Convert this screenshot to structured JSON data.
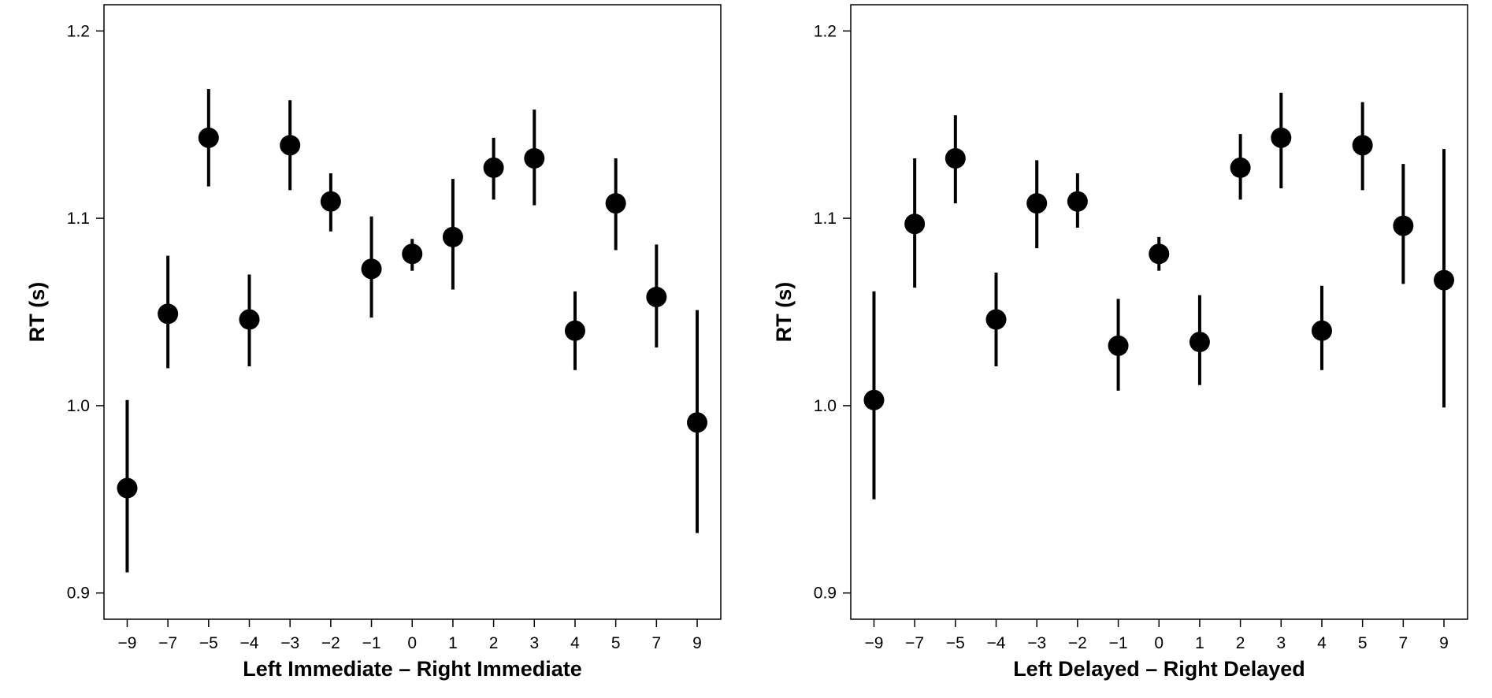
{
  "chart_data": [
    {
      "type": "scatter",
      "title": "",
      "xlabel": "Left Immediate – Right Immediate",
      "ylabel": "RT (s)",
      "categories": [
        "−9",
        "−7",
        "−5",
        "−4",
        "−3",
        "−2",
        "−1",
        "0",
        "1",
        "2",
        "3",
        "4",
        "5",
        "7",
        "9"
      ],
      "values": [
        0.956,
        1.049,
        1.143,
        1.046,
        1.139,
        1.109,
        1.073,
        1.081,
        1.09,
        1.127,
        1.132,
        1.04,
        1.108,
        1.058,
        0.991
      ],
      "error_low": [
        0.911,
        1.02,
        1.117,
        1.021,
        1.115,
        1.093,
        1.047,
        1.072,
        1.062,
        1.11,
        1.107,
        1.019,
        1.083,
        1.031,
        0.932
      ],
      "error_high": [
        1.003,
        1.08,
        1.169,
        1.07,
        1.163,
        1.124,
        1.101,
        1.089,
        1.121,
        1.143,
        1.158,
        1.061,
        1.132,
        1.086,
        1.051
      ],
      "yticks": [
        0.9,
        1.0,
        1.1,
        1.2
      ],
      "ytick_labels": [
        "0.9",
        "1.0",
        "1.1",
        "1.2"
      ],
      "ylim": [
        0.886,
        1.214
      ],
      "grid": false,
      "color": "#000000"
    },
    {
      "type": "scatter",
      "title": "",
      "xlabel": "Left Delayed – Right Delayed",
      "ylabel": "RT (s)",
      "categories": [
        "−9",
        "−7",
        "−5",
        "−4",
        "−3",
        "−2",
        "−1",
        "0",
        "1",
        "2",
        "3",
        "4",
        "5",
        "7",
        "9"
      ],
      "values": [
        1.003,
        1.097,
        1.132,
        1.046,
        1.108,
        1.109,
        1.032,
        1.081,
        1.034,
        1.127,
        1.143,
        1.04,
        1.139,
        1.096,
        1.067
      ],
      "error_low": [
        0.95,
        1.063,
        1.108,
        1.021,
        1.084,
        1.095,
        1.008,
        1.072,
        1.011,
        1.11,
        1.116,
        1.019,
        1.115,
        1.065,
        0.999
      ],
      "error_high": [
        1.061,
        1.132,
        1.155,
        1.071,
        1.131,
        1.124,
        1.057,
        1.09,
        1.059,
        1.145,
        1.167,
        1.064,
        1.162,
        1.129,
        1.137
      ],
      "yticks": [
        0.9,
        1.0,
        1.1,
        1.2
      ],
      "ytick_labels": [
        "0.9",
        "1.0",
        "1.1",
        "1.2"
      ],
      "ylim": [
        0.886,
        1.214
      ],
      "grid": false,
      "color": "#000000"
    }
  ]
}
